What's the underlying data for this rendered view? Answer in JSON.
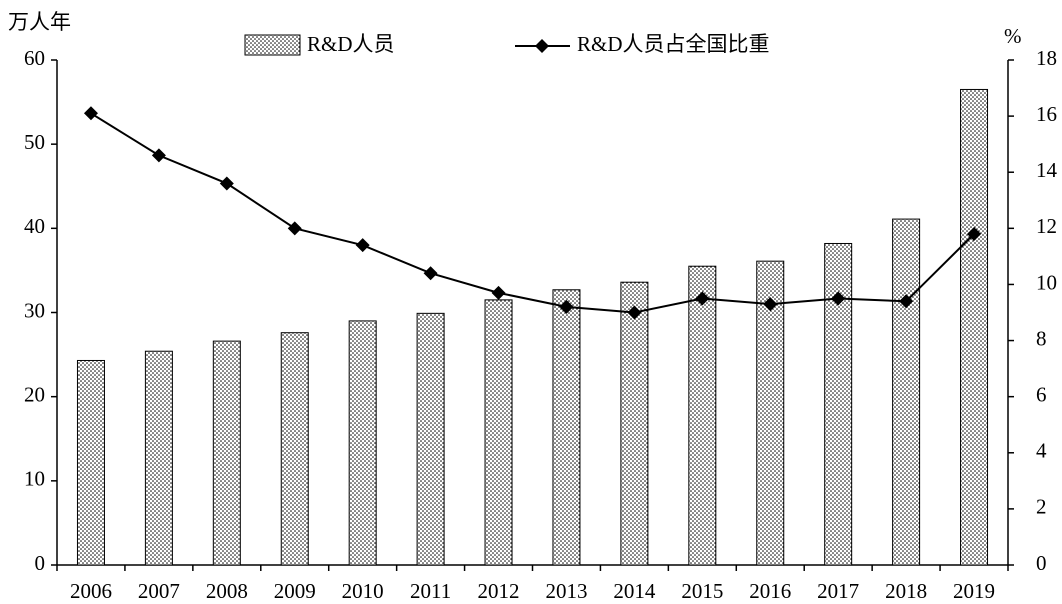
{
  "chart_data": {
    "type": "bar",
    "y_label": "万人年",
    "y2_label": "%",
    "categories": [
      "2006",
      "2007",
      "2008",
      "2009",
      "2010",
      "2011",
      "2012",
      "2013",
      "2014",
      "2015",
      "2016",
      "2017",
      "2018",
      "2019"
    ],
    "series": [
      {
        "name": "R&D人员",
        "type": "bar",
        "color": "#000000",
        "pattern": "dots",
        "values": [
          24.3,
          25.4,
          26.6,
          27.6,
          29.0,
          29.9,
          31.5,
          32.7,
          33.6,
          35.5,
          36.1,
          38.2,
          41.1,
          56.5
        ]
      },
      {
        "name": "R&D人员占全国比重",
        "type": "line",
        "axis": "y2",
        "color": "#000000",
        "values": [
          16.1,
          14.6,
          13.6,
          12.0,
          11.4,
          10.4,
          9.7,
          9.2,
          9.0,
          9.5,
          9.3,
          9.5,
          9.4,
          11.8
        ]
      }
    ],
    "ylim": [
      0,
      60
    ],
    "yticks": [
      0,
      10,
      20,
      30,
      40,
      50,
      60
    ],
    "y2lim": [
      0,
      18
    ],
    "y2ticks": [
      0,
      2,
      4,
      6,
      8,
      10,
      12,
      14,
      16,
      18
    ],
    "legend": "top"
  }
}
